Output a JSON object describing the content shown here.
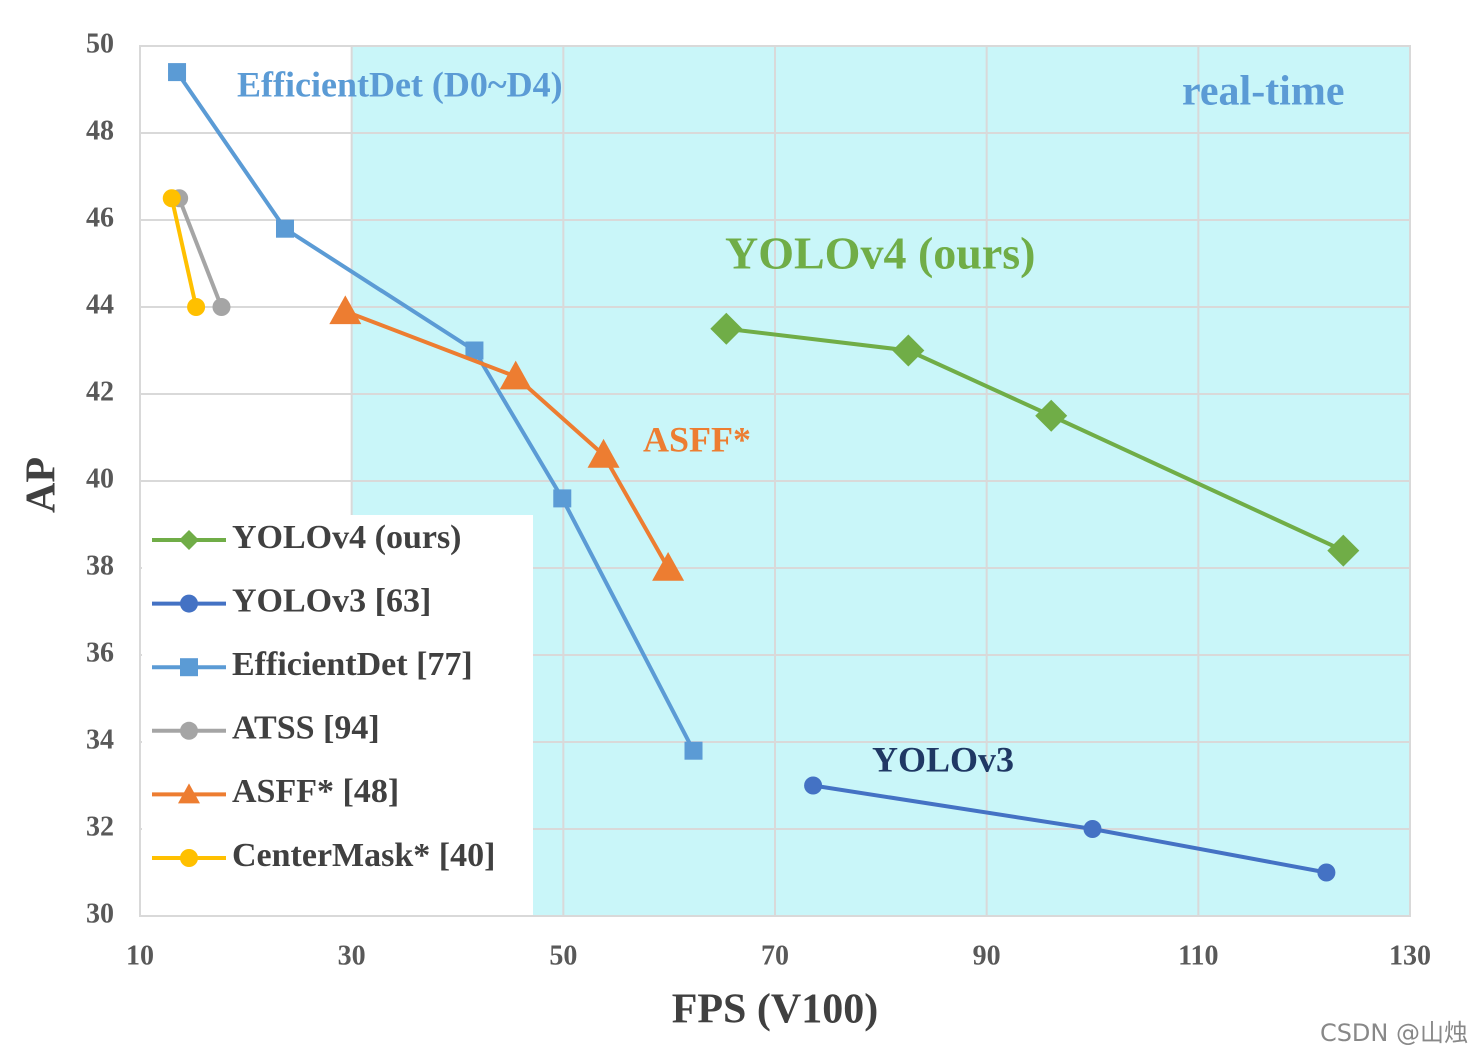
{
  "chart_data": {
    "type": "line",
    "xlabel": "FPS (V100)",
    "ylabel": "AP",
    "xlim": [
      10,
      130
    ],
    "ylim": [
      30,
      50
    ],
    "xticks": [
      10,
      30,
      50,
      70,
      90,
      110,
      130
    ],
    "yticks": [
      30,
      32,
      34,
      36,
      38,
      40,
      42,
      44,
      46,
      48,
      50
    ],
    "grid": true,
    "legend": "lower left",
    "realtime_region": [
      30,
      130
    ],
    "annotations": [
      "EfficientDet (D0~D4)",
      "real-time",
      "YOLOv4 (ours)",
      "ASFF*",
      "YOLOv3"
    ],
    "series": [
      {
        "name": "YOLOv4 (ours)",
        "color": "#70ad47",
        "marker": "diamond",
        "x": [
          65.4,
          82.6,
          96.1,
          123.7
        ],
        "values": [
          43.5,
          43.0,
          41.5,
          38.4
        ]
      },
      {
        "name": "YOLOv3 [63]",
        "color": "#4472c4",
        "marker": "circle",
        "x": [
          73.6,
          100,
          122.1
        ],
        "values": [
          33.0,
          32.0,
          31.0
        ]
      },
      {
        "name": "EfficientDet [77]",
        "color": "#5b9bd5",
        "marker": "square",
        "x": [
          13.5,
          23.7,
          41.6,
          49.9,
          62.3
        ],
        "values": [
          49.4,
          45.8,
          43.0,
          39.6,
          33.8
        ]
      },
      {
        "name": "ATSS [94]",
        "color": "#a5a5a5",
        "marker": "circle",
        "x": [
          13.7,
          17.7
        ],
        "values": [
          46.5,
          44.0
        ]
      },
      {
        "name": "ASFF* [48]",
        "color": "#ed7d31",
        "marker": "triangle",
        "x": [
          29.4,
          45.5,
          53.8,
          59.9
        ],
        "values": [
          43.9,
          42.4,
          40.6,
          38.0
        ]
      },
      {
        "name": "CenterMask* [40]",
        "color": "#ffc000",
        "marker": "circle",
        "x": [
          13.0,
          15.3
        ],
        "values": [
          46.5,
          44.0
        ]
      }
    ],
    "watermark": "CSDN @山烛"
  }
}
